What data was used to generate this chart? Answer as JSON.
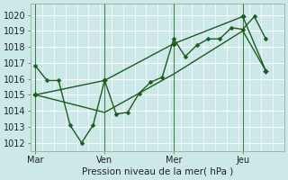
{
  "background_color": "#cce8e8",
  "grid_color": "#b0d8d8",
  "line_color": "#1a5c1a",
  "xlabel": "Pression niveau de la mer( hPa )",
  "ylim": [
    1011.5,
    1020.7
  ],
  "yticks": [
    1012,
    1013,
    1014,
    1015,
    1016,
    1017,
    1018,
    1019,
    1020
  ],
  "xtick_labels": [
    "Mar",
    "Ven",
    "Mer",
    "Jeu"
  ],
  "xtick_positions": [
    0,
    3,
    6,
    9
  ],
  "xlim": [
    -0.2,
    10.8
  ],
  "series": [
    {
      "x": [
        0,
        0.5,
        1.0,
        1.5,
        2.0,
        2.5,
        3.0,
        3.5,
        4.0,
        4.5,
        5.0,
        5.5,
        6.0,
        6.5,
        7.0,
        7.5,
        8.0,
        8.5,
        9.0,
        9.5,
        10.0
      ],
      "y": [
        1016.8,
        1015.9,
        1015.9,
        1013.1,
        1012.0,
        1013.1,
        1015.9,
        1013.8,
        1013.9,
        1015.1,
        1015.8,
        1016.1,
        1018.5,
        1017.4,
        1018.1,
        1018.5,
        1018.5,
        1019.2,
        1019.1,
        1019.9,
        1018.5
      ],
      "marker": "D",
      "markersize": 2.5,
      "linewidth": 1.0
    },
    {
      "x": [
        0,
        3,
        6,
        9,
        10.0
      ],
      "y": [
        1015.0,
        1013.9,
        1016.3,
        1019.0,
        1016.5
      ],
      "marker": null,
      "markersize": 0,
      "linewidth": 1.0
    },
    {
      "x": [
        0,
        3,
        6,
        9,
        10.0
      ],
      "y": [
        1015.0,
        1015.9,
        1018.2,
        1019.9,
        1016.5
      ],
      "marker": "D",
      "markersize": 3,
      "linewidth": 1.0
    }
  ],
  "vline_color": "#3a7a3a",
  "vlines_x": [
    0,
    3,
    6,
    9
  ],
  "figsize": [
    3.2,
    2.0
  ],
  "dpi": 100
}
